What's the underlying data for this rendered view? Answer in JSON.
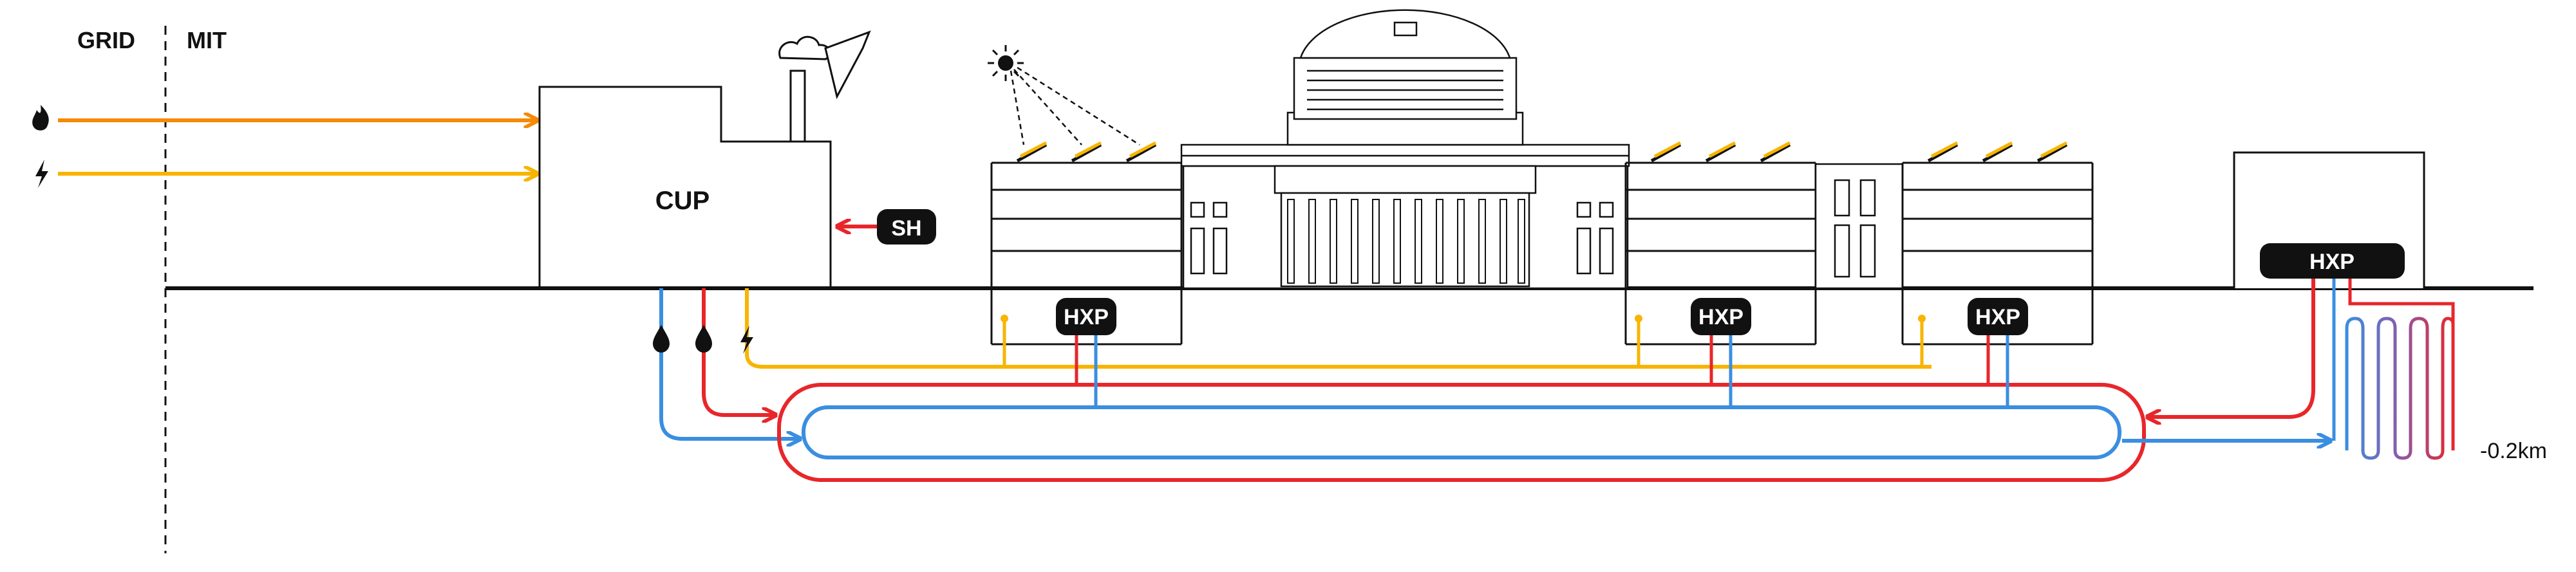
{
  "labels": {
    "grid": "GRID",
    "mit": "MIT",
    "cup": "CUP",
    "sh": "SH",
    "hxp": "HXP",
    "depth": "-0.2km"
  },
  "colors": {
    "electricity": "#f7b500",
    "gas": "#f58a07",
    "hot": "#e8262a",
    "cold": "#3a8ee0",
    "line": "#111111"
  },
  "icons": [
    "flame-icon",
    "lightning-icon",
    "water-drop-icon",
    "sun-icon",
    "solar-panel-icon",
    "smoke-cloud-icon"
  ]
}
